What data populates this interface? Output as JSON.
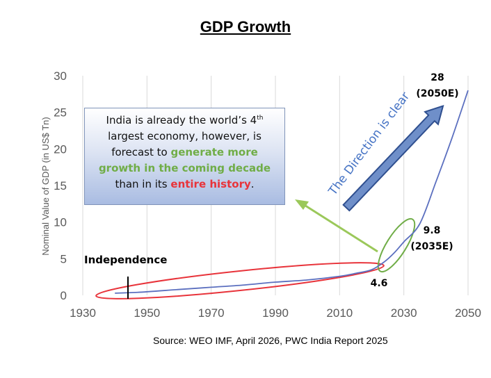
{
  "title": "GDP Growth",
  "source": "Source: WEO IMF, April 2026, PWC India Report 2025",
  "callout": {
    "line1": "India is already the world’s 4",
    "line1_sup": "th",
    "line2": "largest economy, however, is",
    "line3_pre": "forecast to ",
    "line3_green": "generate more",
    "line4_green": "growth in the coming decade",
    "line5_pre": "than in its ",
    "line5_red": "entire history",
    "line5_post": "."
  },
  "annotations": {
    "independence": "Independence",
    "direction": "The Direction is clear",
    "p1_value": "4.6",
    "p2_value": "9.8",
    "p2_label": "(2035E)",
    "p3_value": "28",
    "p3_label": "(2050E)"
  },
  "colors": {
    "line": "#5b6fbf",
    "red_ellipse": "#e8333a",
    "green_ellipse": "#70ad47",
    "arrow_fill": "#6f8fc9",
    "direction_text": "#4472c4",
    "axis_text": "#595959"
  },
  "chart_data": {
    "type": "line",
    "title": "GDP Growth",
    "xlabel": "",
    "ylabel": "Nominal Value of GDP (in US$ Tn)",
    "xlim": [
      1930,
      2050
    ],
    "ylim": [
      0,
      30
    ],
    "xticks": [
      1930,
      1950,
      1970,
      1990,
      2010,
      2030,
      2050
    ],
    "yticks": [
      0,
      5,
      10,
      15,
      20,
      25,
      30
    ],
    "grid": "vertical",
    "series": [
      {
        "x": [
          1940,
          1947,
          1960,
          1970,
          1980,
          1990,
          2000,
          2010,
          2015,
          2020,
          2024,
          2027,
          2030,
          2035,
          2040,
          2045,
          2050
        ],
        "y": [
          0.3,
          0.4,
          0.8,
          1.1,
          1.4,
          1.8,
          2.1,
          2.6,
          3.0,
          3.5,
          4.6,
          5.8,
          7.3,
          9.8,
          15.5,
          21.5,
          28
        ]
      }
    ],
    "annotations": [
      {
        "x": 1947,
        "label": "Independence"
      },
      {
        "x": 2024,
        "y": 4.6,
        "label": "4.6"
      },
      {
        "x": 2035,
        "y": 9.8,
        "label": "9.8 (2035E)"
      },
      {
        "x": 2050,
        "y": 28,
        "label": "28 (2050E)"
      }
    ]
  }
}
